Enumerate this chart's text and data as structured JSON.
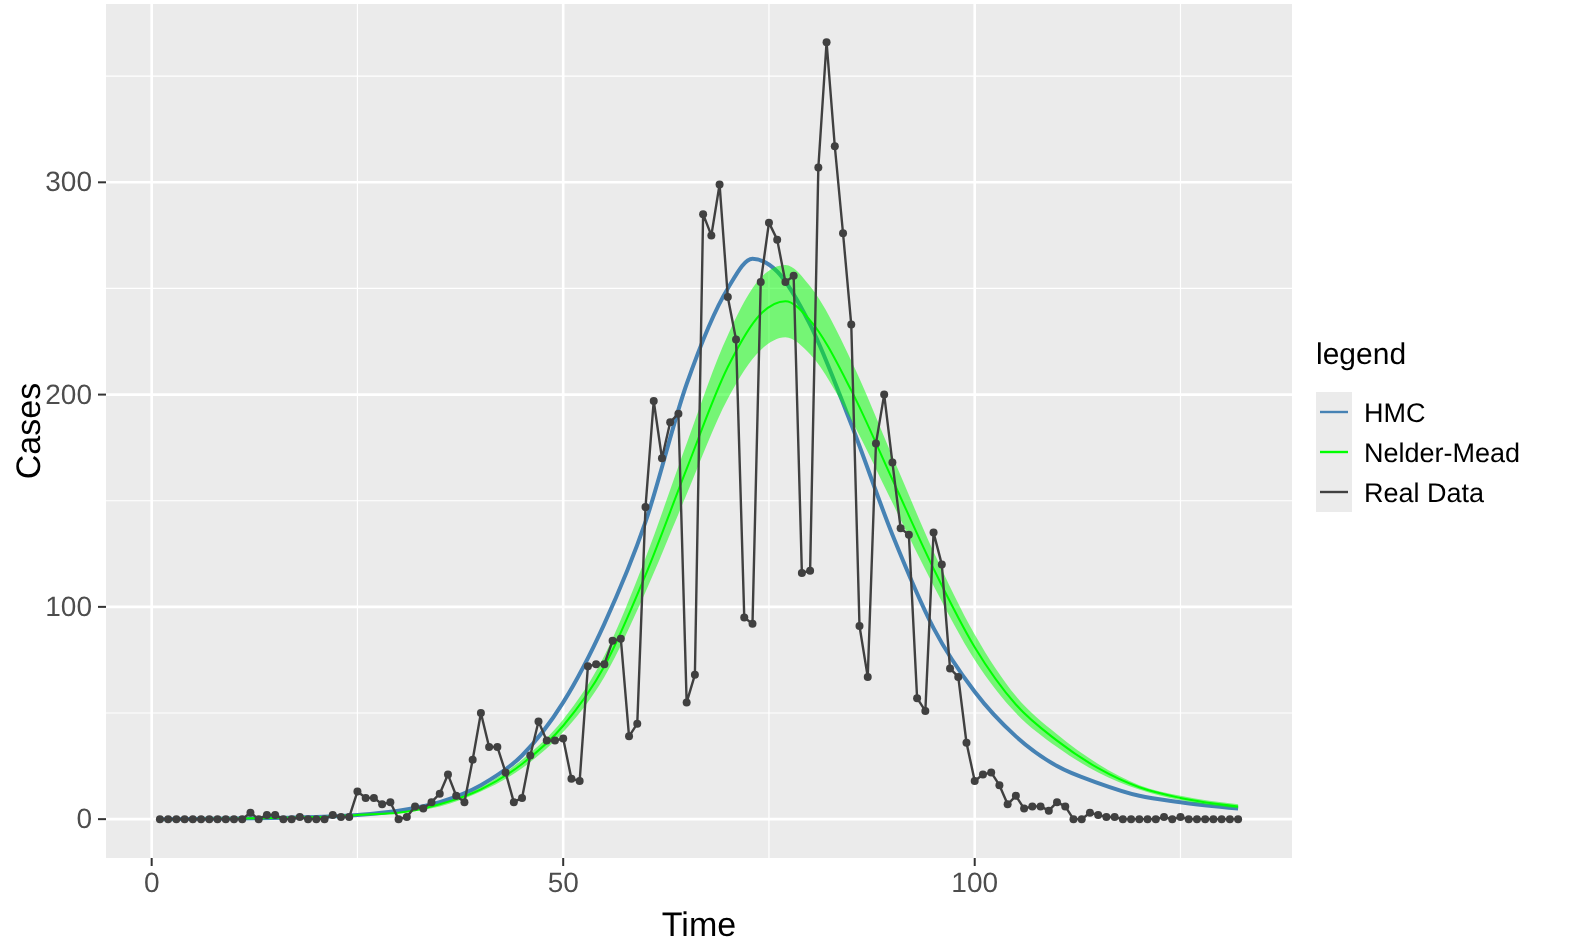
{
  "chart_data": {
    "type": "line",
    "xlabel": "Time",
    "ylabel": "Cases",
    "legend_title": "legend",
    "legend": "right",
    "grid": true,
    "xlim": [
      -5.55,
      138.55
    ],
    "ylim": [
      -18.3,
      384
    ],
    "xticks": [
      0,
      50,
      100
    ],
    "yticks": [
      0,
      100,
      200,
      300
    ],
    "series": [
      {
        "name": "HMC",
        "color": "#4682b4",
        "marker": "none",
        "x": [
          1,
          20,
          25,
          30,
          35,
          40,
          45,
          50,
          55,
          60,
          65,
          70,
          73,
          76,
          80,
          85,
          90,
          95,
          100,
          105,
          110,
          115,
          120,
          125,
          132
        ],
        "values": [
          0,
          1,
          2,
          4,
          8,
          16,
          30,
          55,
          92,
          140,
          205,
          250,
          264,
          258,
          233,
          186,
          134,
          90,
          60,
          39,
          25,
          17,
          11,
          8,
          5
        ]
      },
      {
        "name": "Nelder-Mead",
        "color": "#00ff00",
        "marker": "none",
        "x": [
          1,
          20,
          25,
          30,
          35,
          40,
          45,
          50,
          55,
          60,
          65,
          70,
          74,
          77,
          80,
          85,
          90,
          95,
          100,
          105,
          110,
          115,
          120,
          125,
          132
        ],
        "values": [
          0,
          1,
          2,
          3,
          7,
          14,
          26,
          44,
          72,
          115,
          165,
          213,
          238,
          244,
          235,
          202,
          160,
          118,
          81,
          54,
          37,
          24,
          15,
          10,
          6
        ],
        "lower": [
          0,
          1,
          2,
          3,
          6,
          13,
          24,
          41,
          67,
          107,
          153,
          198,
          221,
          227,
          219,
          188,
          149,
          110,
          75,
          50,
          34,
          22,
          14,
          9,
          5
        ],
        "upper": [
          0,
          1,
          2,
          3,
          7,
          15,
          28,
          47,
          77,
          123,
          177,
          228,
          255,
          261,
          251,
          216,
          171,
          126,
          87,
          58,
          40,
          26,
          16,
          11,
          7
        ]
      },
      {
        "name": "Real Data",
        "color": "#404040",
        "marker": "circle",
        "x": [
          1,
          2,
          3,
          4,
          5,
          6,
          7,
          8,
          9,
          10,
          11,
          12,
          13,
          14,
          15,
          16,
          17,
          18,
          19,
          20,
          21,
          22,
          23,
          24,
          25,
          26,
          27,
          28,
          29,
          30,
          31,
          32,
          33,
          34,
          35,
          36,
          37,
          38,
          39,
          40,
          41,
          42,
          43,
          44,
          45,
          46,
          47,
          48,
          49,
          50,
          51,
          52,
          53,
          54,
          55,
          56,
          57,
          58,
          59,
          60,
          61,
          62,
          63,
          64,
          65,
          66,
          67,
          68,
          69,
          70,
          71,
          72,
          73,
          74,
          75,
          76,
          77,
          78,
          79,
          80,
          81,
          82,
          83,
          84,
          85,
          86,
          87,
          88,
          89,
          90,
          91,
          92,
          93,
          94,
          95,
          96,
          97,
          98,
          99,
          100,
          101,
          102,
          103,
          104,
          105,
          106,
          107,
          108,
          109,
          110,
          111,
          112,
          113,
          114,
          115,
          116,
          117,
          118,
          119,
          120,
          121,
          122,
          123,
          124,
          125,
          126,
          127,
          128,
          129,
          130,
          131,
          132
        ],
        "values": [
          0,
          0,
          0,
          0,
          0,
          0,
          0,
          0,
          0,
          0,
          0,
          3,
          0,
          2,
          2,
          0,
          0,
          1,
          0,
          0,
          0,
          2,
          1,
          1,
          13,
          10,
          10,
          7,
          8,
          0,
          1,
          6,
          5,
          8,
          12,
          21,
          11,
          8,
          28,
          50,
          34,
          34,
          22,
          8,
          10,
          30,
          46,
          37,
          37,
          38,
          19,
          18,
          72,
          73,
          73,
          84,
          85,
          39,
          45,
          147,
          197,
          170,
          187,
          191,
          55,
          68,
          285,
          275,
          299,
          246,
          226,
          95,
          92,
          253,
          281,
          273,
          253,
          256,
          116,
          117,
          307,
          366,
          317,
          276,
          233,
          91,
          67,
          177,
          200,
          168,
          137,
          134,
          57,
          51,
          135,
          120,
          71,
          67,
          36,
          18,
          21,
          22,
          16,
          7,
          11,
          5,
          6,
          6,
          4,
          8,
          6,
          0,
          0,
          3,
          2,
          1,
          1,
          0,
          0,
          0,
          0,
          0,
          1,
          0,
          1,
          0,
          0,
          0,
          0,
          0,
          0,
          0
        ]
      }
    ]
  }
}
